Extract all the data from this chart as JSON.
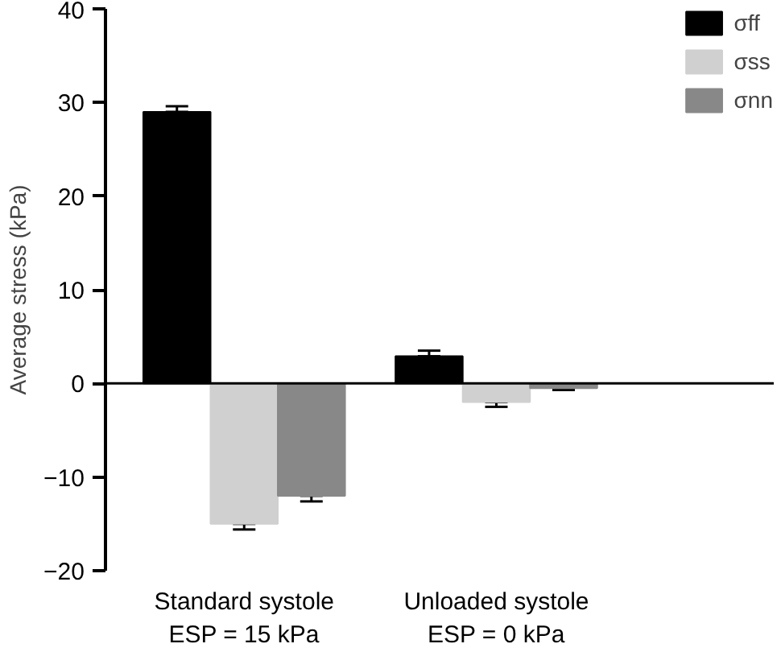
{
  "chart_data": {
    "type": "bar",
    "ylabel": "Average stress (kPa)",
    "categories": [
      "Standard systole\nESP = 15 kPa",
      "Unloaded systole\nESP = 0 kPa"
    ],
    "series": [
      {
        "name": "σff",
        "color": "#000000",
        "values": [
          29,
          2.9
        ],
        "errors": [
          0.6,
          0.6
        ]
      },
      {
        "name": "σss",
        "color": "#d0d0d0",
        "values": [
          -15,
          -2
        ],
        "errors": [
          0.6,
          0.5
        ]
      },
      {
        "name": "σnn",
        "color": "#888888",
        "values": [
          -12,
          -0.5
        ],
        "errors": [
          0.6,
          0.2
        ]
      }
    ],
    "ylim": [
      -20,
      40
    ],
    "yticks": [
      -20,
      -10,
      0,
      10,
      20,
      30,
      40
    ],
    "ref_lines": [
      {
        "axis": "y",
        "value": 0,
        "color": "#000000"
      }
    ],
    "grid": false,
    "legend": "top right"
  }
}
